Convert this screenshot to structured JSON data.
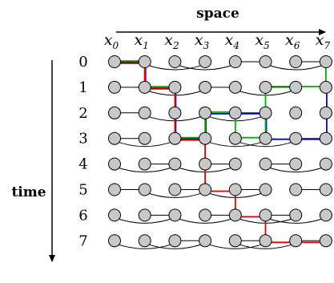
{
  "axes": {
    "space_label": "space",
    "time_label": "time"
  },
  "columns": [
    {
      "base": "x",
      "sub": "0"
    },
    {
      "base": "x",
      "sub": "1"
    },
    {
      "base": "x",
      "sub": "2"
    },
    {
      "base": "x",
      "sub": "3"
    },
    {
      "base": "x",
      "sub": "4"
    },
    {
      "base": "x",
      "sub": "5"
    },
    {
      "base": "x",
      "sub": "6"
    },
    {
      "base": "x",
      "sub": "7"
    }
  ],
  "rows": [
    "0",
    "1",
    "2",
    "3",
    "4",
    "5",
    "6",
    "7"
  ],
  "colors": {
    "node_fill": "#c8c8c8",
    "node_stroke": "#000000",
    "edge": "#000000",
    "path_red": "#e00000",
    "path_green": "#00b000",
    "path_blue": "#0000e0"
  },
  "straight_edges": [
    [
      0,
      0,
      1
    ],
    [
      0,
      4,
      5
    ],
    [
      0,
      6,
      7
    ],
    [
      1,
      0,
      1
    ],
    [
      1,
      3,
      4
    ],
    [
      1,
      5,
      6
    ],
    [
      2,
      0,
      1
    ],
    [
      2,
      4,
      5
    ],
    [
      3,
      0,
      1
    ],
    [
      3,
      2,
      3
    ],
    [
      3,
      6,
      7
    ],
    [
      4,
      1,
      2
    ],
    [
      4,
      3,
      4
    ],
    [
      4,
      5,
      6
    ],
    [
      5,
      0,
      1
    ],
    [
      5,
      2,
      3
    ],
    [
      5,
      4,
      5
    ],
    [
      5,
      6,
      7
    ],
    [
      6,
      1,
      2
    ],
    [
      6,
      3,
      4
    ],
    [
      6,
      5,
      6
    ],
    [
      7,
      2,
      3
    ],
    [
      7,
      4,
      5
    ],
    [
      7,
      6,
      7
    ]
  ],
  "arc_edges": [
    [
      0,
      1,
      3
    ],
    [
      0,
      2,
      4
    ],
    [
      0,
      5,
      7
    ],
    [
      1,
      1,
      3
    ],
    [
      1,
      4,
      6
    ],
    [
      2,
      1,
      3
    ],
    [
      2,
      3,
      5
    ],
    [
      3,
      0,
      2
    ],
    [
      3,
      3,
      5
    ],
    [
      3,
      4,
      6
    ],
    [
      4,
      0,
      2
    ],
    [
      4,
      2,
      4
    ],
    [
      4,
      5,
      7
    ],
    [
      5,
      1,
      3
    ],
    [
      5,
      3,
      5
    ],
    [
      6,
      0,
      2
    ],
    [
      6,
      2,
      4
    ],
    [
      6,
      4,
      6
    ],
    [
      6,
      5,
      7
    ],
    [
      7,
      0,
      2
    ],
    [
      7,
      1,
      3
    ],
    [
      7,
      3,
      5
    ],
    [
      7,
      4,
      6
    ]
  ],
  "paths": [
    {
      "color": "red",
      "nodes": [
        [
          0,
          0
        ],
        [
          0,
          1
        ],
        [
          1,
          1
        ],
        [
          1,
          2
        ],
        [
          3,
          2
        ],
        [
          3,
          3
        ],
        [
          5,
          3
        ],
        [
          5,
          4
        ],
        [
          6,
          4
        ],
        [
          6,
          5
        ],
        [
          7,
          5
        ],
        [
          7,
          6
        ],
        [
          7,
          7
        ]
      ]
    },
    {
      "color": "green",
      "nodes": [
        [
          0,
          0
        ],
        [
          0,
          1
        ],
        [
          1,
          1
        ],
        [
          1,
          2
        ],
        [
          3,
          2
        ],
        [
          3,
          3
        ],
        [
          2,
          3
        ],
        [
          2,
          4
        ],
        [
          3,
          4
        ],
        [
          3,
          5
        ],
        [
          1,
          5
        ],
        [
          1,
          6
        ],
        [
          1,
          7
        ],
        [
          0,
          7
        ]
      ]
    },
    {
      "color": "blue",
      "nodes": [
        [
          0,
          0
        ],
        [
          0,
          1
        ],
        [
          1,
          1
        ],
        [
          1,
          2
        ],
        [
          3,
          2
        ],
        [
          3,
          3
        ],
        [
          2,
          3
        ],
        [
          2,
          4
        ],
        [
          2,
          5
        ],
        [
          3,
          5
        ],
        [
          3,
          6
        ],
        [
          3,
          7
        ],
        [
          1,
          7
        ]
      ]
    }
  ]
}
